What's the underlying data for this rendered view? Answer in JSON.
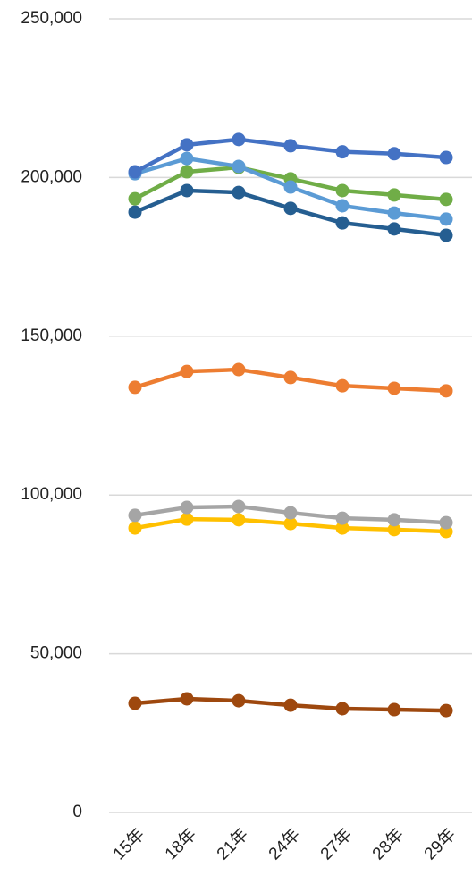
{
  "chart_data": {
    "type": "line",
    "categories": [
      "15年",
      "18年",
      "21年",
      "24年",
      "27年",
      "28年",
      "29年"
    ],
    "series": [
      {
        "color": "#9e480e",
        "values": [
          34400,
          35800,
          35200,
          33800,
          32700,
          32400,
          32100
        ]
      },
      {
        "color": "#ffc000",
        "values": [
          89600,
          92400,
          92200,
          91000,
          89600,
          89100,
          88500
        ]
      },
      {
        "color": "#a5a5a5",
        "values": [
          93600,
          96100,
          96400,
          94400,
          92700,
          92200,
          91300
        ]
      },
      {
        "color": "#ed7d31",
        "values": [
          133900,
          138900,
          139500,
          137000,
          134400,
          133600,
          132800
        ]
      },
      {
        "color": "#255e91",
        "values": [
          189100,
          195900,
          195300,
          190300,
          185700,
          183800,
          181800
        ]
      },
      {
        "color": "#70ad47",
        "values": [
          193300,
          201800,
          203200,
          199600,
          195900,
          194500,
          193100
        ]
      },
      {
        "color": "#5b9bd5",
        "values": [
          201200,
          206000,
          203500,
          197000,
          191100,
          188800,
          186900
        ]
      },
      {
        "color": "#4472c4",
        "values": [
          201800,
          210300,
          212000,
          210000,
          208100,
          207500,
          206300
        ]
      }
    ],
    "ylim": [
      0,
      250000
    ],
    "yticks": [
      0,
      {
        "value": 50000,
        "label": "50,000"
      },
      {
        "value": 100000,
        "label": "100,000"
      },
      {
        "value": 150000,
        "label": "150,000"
      },
      {
        "value": 200000,
        "label": "200,000"
      },
      {
        "value": 250000,
        "label": "250,000"
      }
    ],
    "grid": true
  }
}
